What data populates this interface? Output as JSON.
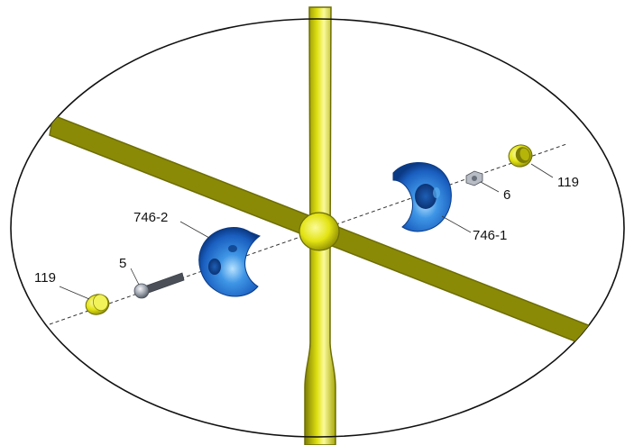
{
  "diagram": {
    "labels": {
      "tube_cap_left": "119",
      "tube_cap_right": "119",
      "screw": "5",
      "ball_half_left": "746-2",
      "ball_half_right": "746-1",
      "nut": "6"
    },
    "colors": {
      "tube_yellow": "#e3e313",
      "tube_highlight": "#fbfb9a",
      "tube_shadow": "#8a8a06",
      "ball_blue": "#2f7fd4",
      "ball_light": "#9fd4ff",
      "ball_dark": "#0b3a85",
      "screw_gray": "#9aa0aa",
      "ellipse_outline": "#111111"
    },
    "icons": {
      "cap": "tube-end-cap-icon",
      "screw": "screw-icon",
      "nut": "hex-nut-icon",
      "ball_half": "ball-joint-half-icon"
    }
  }
}
